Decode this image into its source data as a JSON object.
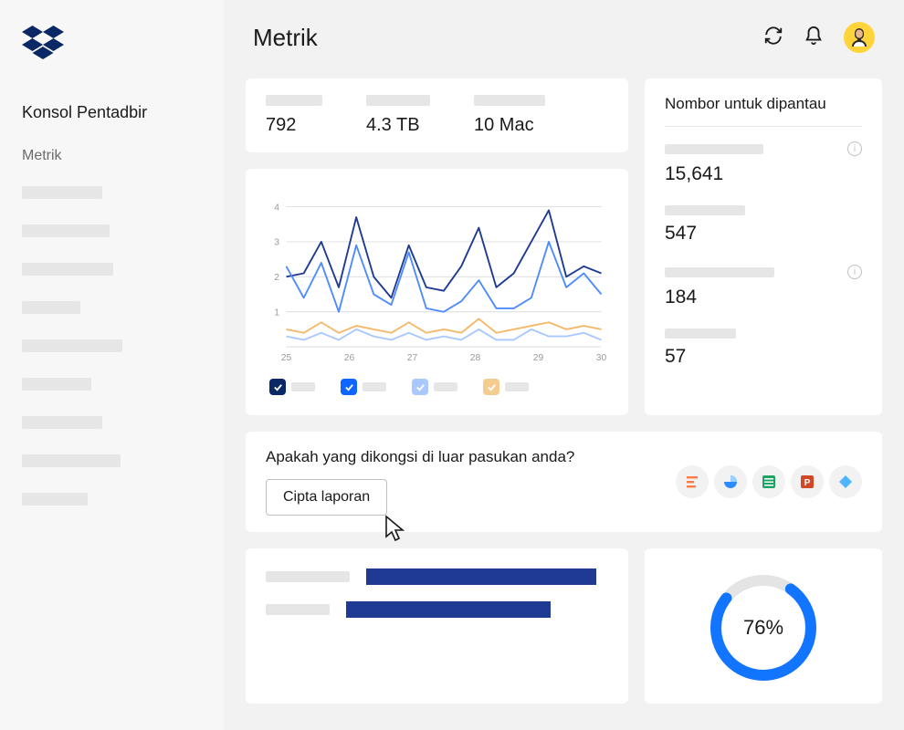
{
  "sidebar": {
    "title": "Konsol Pentadbir",
    "active_item": "Metrik",
    "placeholder_widths": [
      88,
      96,
      100,
      64,
      110,
      76,
      88,
      108,
      72
    ]
  },
  "header": {
    "title": "Metrik"
  },
  "colors": {
    "brand_navy": "#0a2865",
    "accent_blue": "#0d66ff",
    "line_dark": "#1f3a93",
    "line_mid": "#4d8bff",
    "line_light": "#a9c8ff",
    "line_orange": "#f5b86a",
    "placeholder": "#e6e6e6",
    "card_bg": "#ffffff",
    "page_bg": "#f2f2f2",
    "grid": "#dcdcdc",
    "text": "#1a1a1a",
    "donut_blue": "#1275ff",
    "donut_track": "#e4e4e4",
    "avatar_bg": "#ffd43b"
  },
  "stats": [
    {
      "value": "792",
      "label_width": 62
    },
    {
      "value": "4.3 TB",
      "label_width": 70
    },
    {
      "value": "10 Mac",
      "label_width": 78
    }
  ],
  "line_chart": {
    "x_labels": [
      "25",
      "26",
      "27",
      "28",
      "29",
      "30"
    ],
    "y_ticks": [
      1,
      2,
      3,
      4
    ],
    "ylim": [
      0,
      4.2
    ],
    "series": [
      {
        "color": "#1f3a93",
        "checked": true,
        "check_bg": "#0a2865",
        "values": [
          2.0,
          2.1,
          3.0,
          1.7,
          3.7,
          2.0,
          1.4,
          2.9,
          1.7,
          1.6,
          2.3,
          3.4,
          1.7,
          2.1,
          3.0,
          3.9,
          2.0,
          2.3,
          2.1
        ]
      },
      {
        "color": "#4d8bff",
        "checked": true,
        "check_bg": "#0d66ff",
        "values": [
          2.3,
          1.4,
          2.4,
          1.0,
          2.9,
          1.5,
          1.2,
          2.7,
          1.1,
          1.0,
          1.3,
          1.9,
          1.1,
          1.1,
          1.4,
          3.0,
          1.7,
          2.1,
          1.5
        ]
      },
      {
        "color": "#a9c8ff",
        "checked": true,
        "check_bg": "#a9c8ff",
        "values": [
          0.3,
          0.2,
          0.4,
          0.2,
          0.5,
          0.3,
          0.2,
          0.4,
          0.2,
          0.3,
          0.2,
          0.5,
          0.2,
          0.2,
          0.5,
          0.3,
          0.3,
          0.4,
          0.2
        ]
      },
      {
        "color": "#f5b86a",
        "checked": true,
        "check_bg": "#f5cc8f",
        "values": [
          0.5,
          0.4,
          0.7,
          0.4,
          0.6,
          0.5,
          0.4,
          0.7,
          0.4,
          0.5,
          0.4,
          0.8,
          0.4,
          0.5,
          0.6,
          0.7,
          0.5,
          0.6,
          0.5
        ]
      }
    ]
  },
  "watch": {
    "title": "Nombor untuk dipantau",
    "metrics": [
      {
        "value": "15,641",
        "label_width": 108,
        "info": true
      },
      {
        "value": "547",
        "label_width": 88,
        "info": false
      },
      {
        "value": "184",
        "label_width": 120,
        "info": true
      },
      {
        "value": "57",
        "label_width": 78,
        "info": false
      }
    ]
  },
  "report": {
    "question": "Apakah yang dikongsi di luar pasukan anda?",
    "button_label": "Cipta laporan",
    "file_icons": [
      "doc-lines",
      "pie",
      "sheet",
      "slides",
      "diamond"
    ]
  },
  "bar_chart": {
    "rows": [
      {
        "label_width": 92,
        "value": 0.95
      },
      {
        "label_width": 70,
        "value": 0.78
      }
    ],
    "bar_color": "#1f3a93"
  },
  "donut": {
    "percent": 76,
    "label": "76%",
    "color": "#1275ff",
    "track": "#e4e4e4",
    "stroke_width": 12
  }
}
